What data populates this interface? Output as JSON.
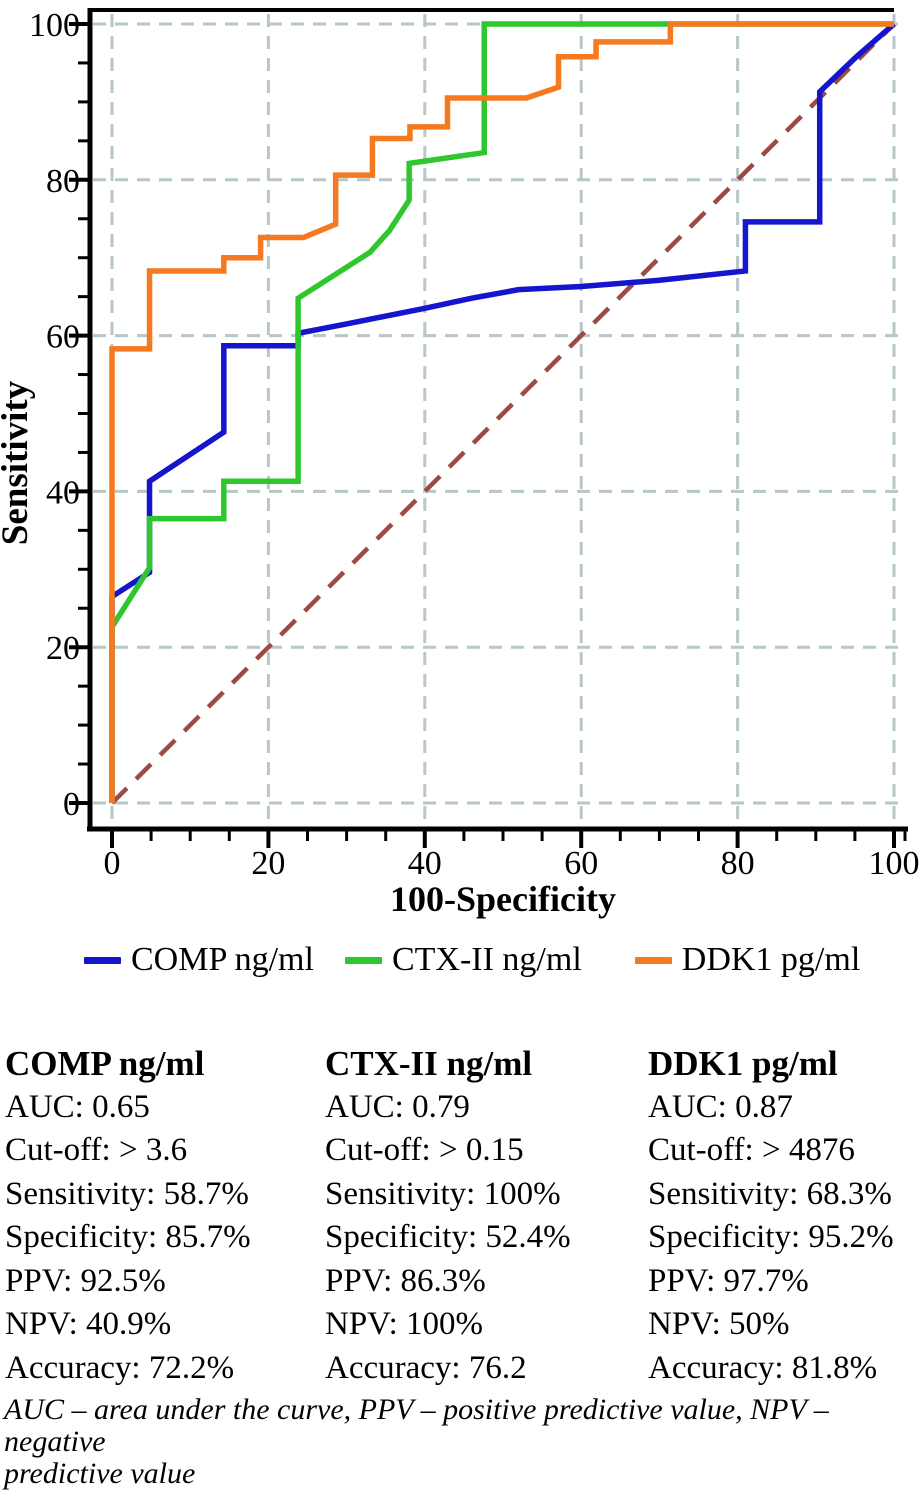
{
  "chart_data": {
    "type": "line",
    "subtype": "roc-curves",
    "title": "",
    "xlabel": "100-Specificity",
    "ylabel": "Sensitivity",
    "xlim": [
      0,
      100
    ],
    "ylim": [
      0,
      100
    ],
    "xticks": [
      0,
      20,
      40,
      60,
      80,
      100
    ],
    "yticks": [
      0,
      20,
      40,
      60,
      80,
      100
    ],
    "minor_tick_step": 5,
    "grid": true,
    "grid_style": "dashed",
    "grid_color": "#b7c6c6",
    "axis_color": "#000000",
    "legend_position": "bottom",
    "reference_line": {
      "name": "no-discrimination-diagonal",
      "style": "dashed",
      "color": "#9b4a45",
      "points": [
        [
          0,
          0
        ],
        [
          100,
          100
        ]
      ]
    },
    "series": [
      {
        "name": "COMP ng/ml",
        "color": "#1515cd",
        "points": [
          [
            0,
            0
          ],
          [
            0,
            26.5
          ],
          [
            4.8,
            29.6
          ],
          [
            4.8,
            41.3
          ],
          [
            14.3,
            47.6
          ],
          [
            14.3,
            58.7
          ],
          [
            23.8,
            58.7
          ],
          [
            23.8,
            60.3
          ],
          [
            30,
            61.5
          ],
          [
            40,
            63.5
          ],
          [
            46,
            64.8
          ],
          [
            52,
            65.9
          ],
          [
            60,
            66.3
          ],
          [
            70,
            67.1
          ],
          [
            81,
            68.3
          ],
          [
            81,
            74.6
          ],
          [
            90.5,
            74.6
          ],
          [
            90.5,
            91.3
          ],
          [
            95.2,
            95.8
          ],
          [
            100,
            100
          ]
        ]
      },
      {
        "name": "CTX-II ng/ml",
        "color": "#2ec82e",
        "points": [
          [
            0,
            0
          ],
          [
            0,
            22.6
          ],
          [
            4.8,
            30.2
          ],
          [
            4.8,
            36.5
          ],
          [
            14.3,
            36.5
          ],
          [
            14.3,
            41.3
          ],
          [
            23.8,
            41.3
          ],
          [
            23.8,
            64.8
          ],
          [
            33,
            70.7
          ],
          [
            35.5,
            73.5
          ],
          [
            38,
            77.4
          ],
          [
            38,
            82.1
          ],
          [
            47.6,
            83.5
          ],
          [
            47.6,
            100
          ],
          [
            100,
            100
          ]
        ]
      },
      {
        "name": "DDK1 pg/ml",
        "color": "#f5791e",
        "points": [
          [
            0,
            0
          ],
          [
            0,
            58.3
          ],
          [
            4.8,
            58.3
          ],
          [
            4.8,
            68.3
          ],
          [
            14.3,
            68.3
          ],
          [
            14.3,
            70
          ],
          [
            19,
            70
          ],
          [
            19,
            72.6
          ],
          [
            24.5,
            72.6
          ],
          [
            28.6,
            74.3
          ],
          [
            28.6,
            80.6
          ],
          [
            33.3,
            80.6
          ],
          [
            33.3,
            85.3
          ],
          [
            38.1,
            85.3
          ],
          [
            38.1,
            86.8
          ],
          [
            42.9,
            86.8
          ],
          [
            42.9,
            90.5
          ],
          [
            53,
            90.5
          ],
          [
            57.1,
            91.9
          ],
          [
            57.1,
            95.8
          ],
          [
            61.9,
            95.8
          ],
          [
            61.9,
            97.7
          ],
          [
            71.4,
            97.7
          ],
          [
            71.4,
            100
          ],
          [
            100,
            100
          ]
        ]
      }
    ]
  },
  "legend": {
    "items": [
      {
        "label": "COMP ng/ml",
        "color": "#1515cd"
      },
      {
        "label": "CTX-II ng/ml",
        "color": "#2ec82e"
      },
      {
        "label": "DDK1 pg/ml",
        "color": "#f5791e"
      }
    ]
  },
  "stats": {
    "columns": [
      {
        "header": "COMP ng/ml",
        "lines": [
          "AUC: 0.65",
          "Cut-off: > 3.6",
          "Sensitivity: 58.7%",
          "Specificity: 85.7%",
          "PPV: 92.5%",
          "NPV: 40.9%",
          "Accuracy: 72.2%"
        ]
      },
      {
        "header": "CTX-II ng/ml",
        "lines": [
          "AUC: 0.79",
          "Cut-off: > 0.15",
          "Sensitivity: 100%",
          "Specificity: 52.4%",
          "PPV: 86.3%",
          "NPV: 100%",
          "Accuracy: 76.2"
        ]
      },
      {
        "header": "DDK1 pg/ml",
        "lines": [
          "AUC: 0.87",
          "Cut-off: > 4876",
          "Sensitivity: 68.3%",
          "Specificity: 95.2%",
          "PPV: 97.7%",
          "NPV: 50%",
          "Accuracy: 81.8%"
        ]
      }
    ]
  },
  "footnote": {
    "lines": [
      "AUC – area under the curve, PPV – positive predictive value, NPV – negative",
      "predictive value"
    ]
  }
}
